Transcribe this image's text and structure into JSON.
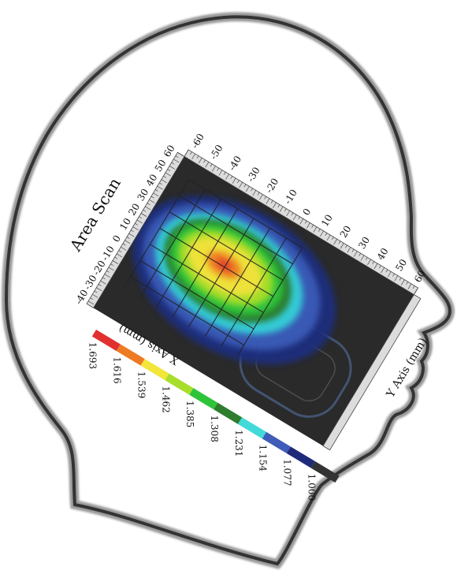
{
  "title": "Area Scan",
  "x_axis": {
    "label": "X Axis (mm)",
    "ticks": [
      "-60",
      "-50",
      "-40",
      "-30",
      "-20",
      "-10",
      "0",
      "10",
      "20",
      "30",
      "40",
      "50",
      "60"
    ]
  },
  "y_axis": {
    "label": "Y Axis (mm)",
    "ticks": [
      "-40",
      "-30",
      "-20",
      "-10",
      "0",
      "10",
      "20",
      "30",
      "40",
      "50",
      "60"
    ]
  },
  "legend": {
    "entries": [
      {
        "value": "1.693",
        "color": "#e03030"
      },
      {
        "value": "1.616",
        "color": "#ee7a22"
      },
      {
        "value": "1.539",
        "color": "#f2e63a"
      },
      {
        "value": "1.462",
        "color": "#a7de2c"
      },
      {
        "value": "1.385",
        "color": "#2ec43a"
      },
      {
        "value": "1.308",
        "color": "#2e7c2e"
      },
      {
        "value": "1.231",
        "color": "#42d9d9"
      },
      {
        "value": "1.154",
        "color": "#3e5cb8"
      },
      {
        "value": "1.077",
        "color": "#202a7a"
      },
      {
        "value": "1.000",
        "color": "#333333"
      }
    ]
  }
}
